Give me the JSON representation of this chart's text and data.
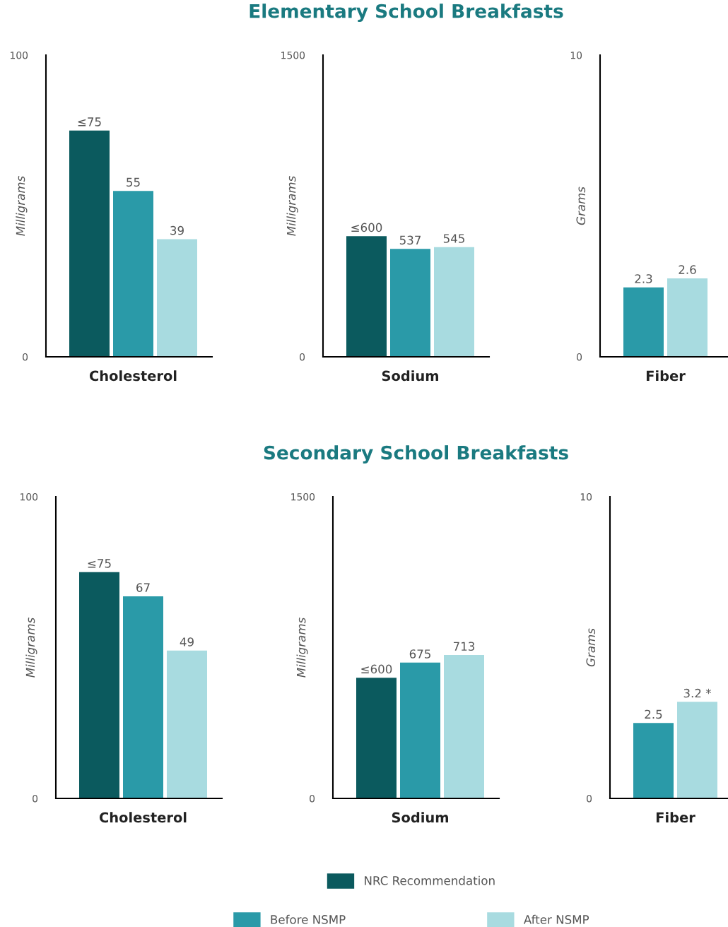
{
  "chart_data": [
    {
      "type": "bar",
      "categories": [
        null,
        null,
        null
      ],
      "xlabel": "Cholesterol",
      "ylabel": "Milligrams",
      "ylim": [
        0,
        100
      ],
      "yticks": [
        0,
        100
      ],
      "series": [
        {
          "color": "#0b5a5e",
          "values": [
            75,
            null,
            null
          ],
          "value_labels": [
            "≤75",
            null,
            null
          ]
        },
        {
          "color": "#2a9aa8",
          "values": [
            null,
            55,
            null
          ],
          "value_labels": [
            null,
            "55",
            null
          ]
        },
        {
          "color": "#a8dbe0",
          "values": [
            null,
            null,
            39
          ],
          "value_labels": [
            null,
            null,
            "39"
          ]
        }
      ]
    },
    {
      "type": "bar",
      "title": "Elementary School Breakfasts",
      "categories": [
        null,
        null,
        null
      ],
      "xlabel": "Sodium",
      "ylabel": "Milligrams",
      "ylim": [
        0,
        1500
      ],
      "yticks": [
        0,
        1500
      ],
      "series": [
        {
          "color": "#0b5a5e",
          "values": [
            600,
            null,
            null
          ],
          "value_labels": [
            "≤600",
            null,
            null
          ]
        },
        {
          "color": "#2a9aa8",
          "values": [
            null,
            537,
            null
          ],
          "value_labels": [
            null,
            "537",
            null
          ]
        },
        {
          "color": "#a8dbe0",
          "values": [
            null,
            null,
            545
          ],
          "value_labels": [
            null,
            null,
            "545"
          ]
        }
      ]
    },
    {
      "type": "bar",
      "categories": [
        null,
        null
      ],
      "xlabel": "Fiber",
      "ylabel": "Grams",
      "ylim": [
        0,
        10
      ],
      "yticks": [
        0,
        10
      ],
      "series": [
        {
          "color": "#2a9aa8",
          "values": [
            2.3,
            null
          ],
          "value_labels": [
            "2.3",
            null
          ]
        },
        {
          "color": "#a8dbe0",
          "values": [
            null,
            2.6
          ],
          "value_labels": [
            null,
            "2.6"
          ]
        }
      ]
    },
    {
      "type": "bar",
      "categories": [
        null,
        null,
        null
      ],
      "xlabel": "Cholesterol",
      "ylabel": "Milligrams",
      "ylim": [
        0,
        100
      ],
      "yticks": [
        0,
        100
      ],
      "series": [
        {
          "color": "#0b5a5e",
          "values": [
            75,
            null,
            null
          ],
          "value_labels": [
            "≤75",
            null,
            null
          ]
        },
        {
          "color": "#2a9aa8",
          "values": [
            null,
            67,
            null
          ],
          "value_labels": [
            null,
            "67",
            null
          ]
        },
        {
          "color": "#a8dbe0",
          "values": [
            null,
            null,
            49
          ],
          "value_labels": [
            null,
            null,
            "49"
          ]
        }
      ]
    },
    {
      "type": "bar",
      "title": "Secondary School Breakfasts",
      "categories": [
        null,
        null,
        null
      ],
      "xlabel": "Sodium",
      "ylabel": "Milligrams",
      "ylim": [
        0,
        1500
      ],
      "yticks": [
        0,
        1500
      ],
      "legend": "bottom",
      "series": [
        {
          "name": "NRC Recommendation",
          "color": "#0b5a5e",
          "values": [
            600,
            null,
            null
          ],
          "value_labels": [
            "≤600",
            null,
            null
          ]
        },
        {
          "name": "Before NSMP",
          "color": "#2a9aa8",
          "values": [
            null,
            675,
            null
          ],
          "value_labels": [
            null,
            "675",
            null
          ]
        },
        {
          "name": "After NSMP",
          "color": "#a8dbe0",
          "values": [
            null,
            null,
            713
          ],
          "value_labels": [
            null,
            null,
            "713"
          ]
        }
      ]
    },
    {
      "type": "bar",
      "categories": [
        null,
        null
      ],
      "xlabel": "Fiber",
      "ylabel": "Grams",
      "ylim": [
        0,
        10
      ],
      "yticks": [
        0,
        10
      ],
      "series": [
        {
          "color": "#2a9aa8",
          "values": [
            2.5,
            null
          ],
          "value_labels": [
            "2.5",
            null
          ]
        },
        {
          "color": "#a8dbe0",
          "values": [
            null,
            3.2
          ],
          "value_labels": [
            null,
            "3.2 *"
          ]
        }
      ]
    }
  ]
}
